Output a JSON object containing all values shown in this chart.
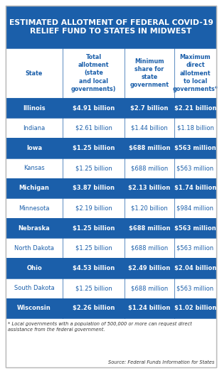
{
  "title": "ESTIMATED ALLOTMENT OF FEDERAL COVID-19\nRELIEF FUND TO STATES IN MIDWEST",
  "title_bg": "#1b5faa",
  "title_color": "#ffffff",
  "header_color": "#1b5faa",
  "col_headers": [
    "State",
    "Total\nallotment\n(state\nand local\ngovernments)",
    "Minimum\nshare for\nstate\ngovernment",
    "Maximum\ndirect\nallotment\nto local\ngovernments*"
  ],
  "rows": [
    [
      "Illinois",
      "$4.91 billion",
      "$2.7 billion",
      "$2.21 billion"
    ],
    [
      "Indiana",
      "$2.61 billion",
      "$1.44 billion",
      "$1.18 billion"
    ],
    [
      "Iowa",
      "$1.25 billion",
      "$688 million",
      "$563 million"
    ],
    [
      "Kansas",
      "$1.25 billion",
      "$688 million",
      "$563 million"
    ],
    [
      "Michigan",
      "$3.87 billion",
      "$2.13 billion",
      "$1.74 billion"
    ],
    [
      "Minnesota",
      "$2.19 billion",
      "$1.20 billion",
      "$984 million"
    ],
    [
      "Nebraska",
      "$1.25 billion",
      "$688 million",
      "$563 million"
    ],
    [
      "North Dakota",
      "$1.25 billion",
      "$688 million",
      "$563 million"
    ],
    [
      "Ohio",
      "$4.53 billion",
      "$2.49 billion",
      "$2.04 billion"
    ],
    [
      "South Dakota",
      "$1.25 billion",
      "$688 million",
      "$563 million"
    ],
    [
      "Wisconsin",
      "$2.26 billion",
      "$1.24 billion",
      "$1.02 billion"
    ]
  ],
  "highlighted_rows": [
    0,
    2,
    4,
    6,
    8,
    10
  ],
  "row_bg_highlight": "#1b5faa",
  "row_bg_normal": "#ffffff",
  "highlight_text_color": "#ffffff",
  "normal_text_color": "#1b5faa",
  "border_color": "#1b5faa",
  "footnote_line1": "* Local governments with a population of 500,000 or more can request direct",
  "footnote_line2": "assistance from the federal government.",
  "source": "Source: Federal Funds Information for States",
  "outer_border_color": "#bbbbbb",
  "bg_color": "#ffffff",
  "title_fontsize": 7.8,
  "header_fontsize": 5.8,
  "cell_fontsize": 6.0,
  "footnote_fontsize": 4.8
}
